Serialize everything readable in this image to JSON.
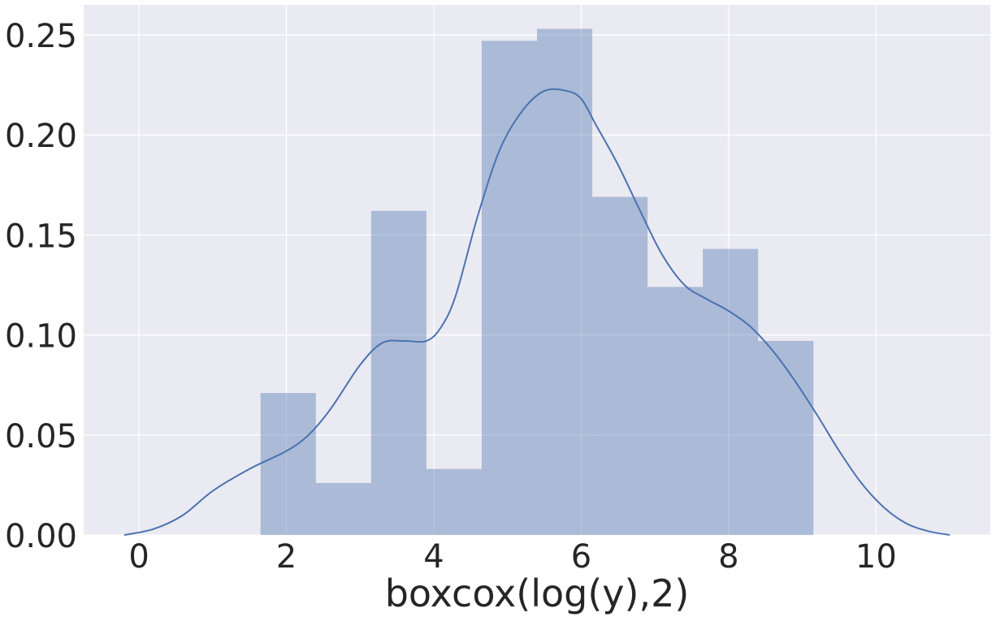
{
  "chart_data": {
    "type": "histogram",
    "title": "",
    "xlabel": "boxcox(log(y),2)",
    "ylabel": "",
    "xlim": [
      -0.75,
      11.55
    ],
    "ylim": [
      0.0,
      0.265
    ],
    "xticks": [
      0,
      2,
      4,
      6,
      8,
      10
    ],
    "xtick_labels": [
      "0",
      "2",
      "4",
      "6",
      "8",
      "10"
    ],
    "yticks": [
      0.0,
      0.05,
      0.1,
      0.15,
      0.2,
      0.25
    ],
    "ytick_labels": [
      "0.00",
      "0.05",
      "0.10",
      "0.15",
      "0.20",
      "0.25"
    ],
    "grid": true,
    "background_color": "#eaeaf2",
    "bar_color": "#4c72b0",
    "bar_opacity": 0.4,
    "line_color": "#4c72b0",
    "bins": [
      {
        "x0": 1.65,
        "x1": 2.4,
        "density": 0.071
      },
      {
        "x0": 2.4,
        "x1": 3.15,
        "density": 0.026
      },
      {
        "x0": 3.15,
        "x1": 3.9,
        "density": 0.162
      },
      {
        "x0": 3.9,
        "x1": 4.65,
        "density": 0.033
      },
      {
        "x0": 4.65,
        "x1": 5.4,
        "density": 0.247
      },
      {
        "x0": 5.4,
        "x1": 6.15,
        "density": 0.253
      },
      {
        "x0": 6.15,
        "x1": 6.9,
        "density": 0.169
      },
      {
        "x0": 6.9,
        "x1": 7.65,
        "density": 0.124
      },
      {
        "x0": 7.65,
        "x1": 8.4,
        "density": 0.143
      },
      {
        "x0": 8.4,
        "x1": 9.15,
        "density": 0.097
      }
    ],
    "kde": {
      "x": [
        -0.2,
        0.2,
        0.6,
        1.0,
        1.5,
        2.0,
        2.3,
        2.6,
        3.0,
        3.3,
        3.6,
        3.9,
        4.1,
        4.3,
        4.6,
        4.9,
        5.2,
        5.5,
        5.8,
        6.0,
        6.2,
        6.5,
        6.8,
        7.1,
        7.4,
        7.7,
        8.0,
        8.3,
        8.6,
        8.9,
        9.2,
        9.5,
        9.8,
        10.1,
        10.4,
        10.7,
        11.0
      ],
      "y": [
        0.0,
        0.003,
        0.01,
        0.022,
        0.033,
        0.042,
        0.05,
        0.063,
        0.085,
        0.096,
        0.097,
        0.097,
        0.104,
        0.12,
        0.16,
        0.193,
        0.212,
        0.222,
        0.222,
        0.218,
        0.205,
        0.185,
        0.162,
        0.14,
        0.125,
        0.118,
        0.112,
        0.104,
        0.092,
        0.077,
        0.06,
        0.042,
        0.026,
        0.014,
        0.006,
        0.002,
        0.0
      ]
    }
  }
}
